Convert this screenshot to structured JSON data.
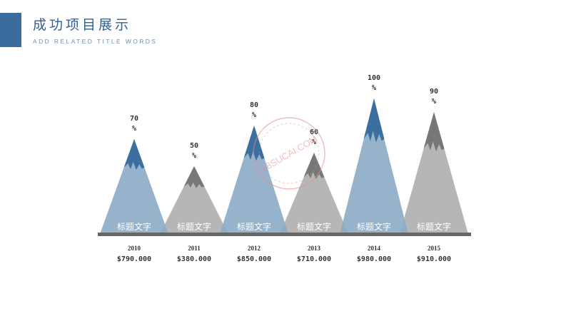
{
  "header": {
    "title": "成功项目展示",
    "subtitle": "ADD RELATED TITLE WORDS"
  },
  "colors": {
    "accent": "#3a6d9e",
    "blue_light": "#8eadc8",
    "blue_dark": "#3b6f9f",
    "gray_light": "#b0b0b0",
    "gray_dark": "#777777",
    "baseline": "#666666"
  },
  "chart_data": {
    "type": "area",
    "ylim": [
      0,
      100
    ],
    "categories": [
      "2010",
      "2011",
      "2012",
      "2013",
      "2014",
      "2015"
    ],
    "values": [
      70,
      50,
      80,
      60,
      100,
      90
    ],
    "value_labels": [
      "70\n%",
      "50\n%",
      "80\n%",
      "60\n%",
      "100\n%",
      "90\n%"
    ],
    "item_labels": [
      "标题文字",
      "标题文字",
      "标题文字",
      "标题文字",
      "标题文字",
      "标题文字"
    ],
    "amounts": [
      "$790.000",
      "$380.000",
      "$850.000",
      "$710.000",
      "$980.000",
      "$910.000"
    ],
    "styles": [
      "blue",
      "gray",
      "blue",
      "gray",
      "blue",
      "gray"
    ]
  },
  "watermark": {
    "text": "88SUCAI.COM"
  }
}
